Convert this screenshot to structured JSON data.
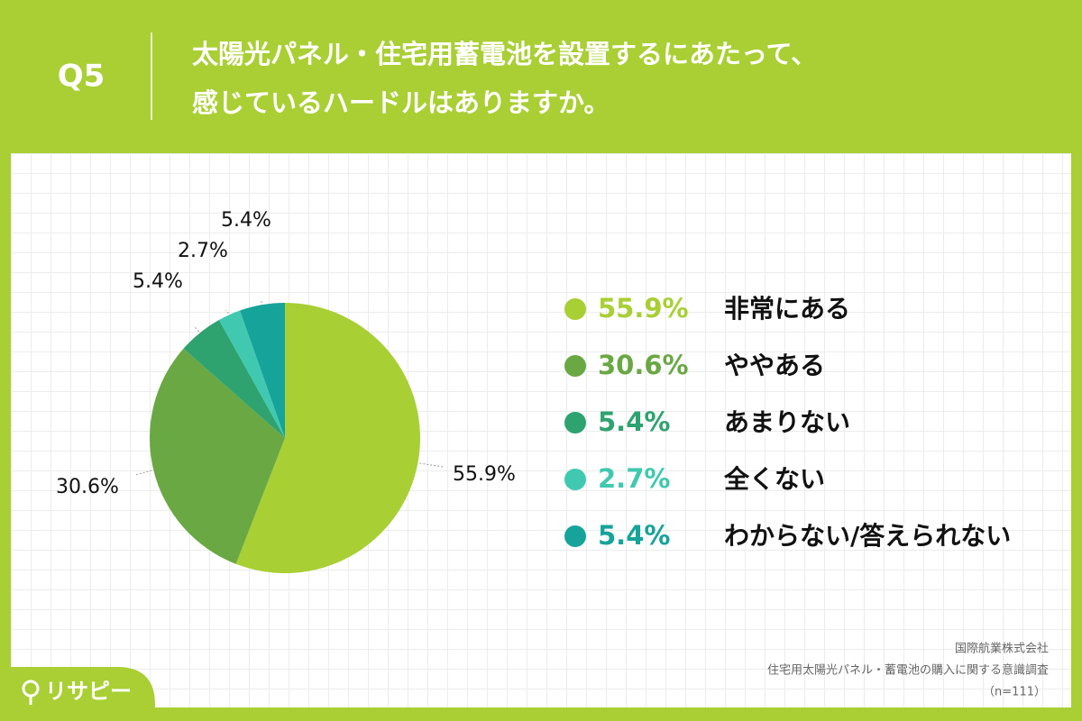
{
  "header": {
    "label": "Q5",
    "title_lines": [
      "太陽光パネル・住宅用蓄電池を設置するにあたって、",
      "感じているハードルはありますか。"
    ]
  },
  "chart_data": {
    "type": "pie",
    "categories": [
      "非常にある",
      "ややある",
      "あまりない",
      "全くない",
      "わからない/答えられない"
    ],
    "values": [
      55.9,
      30.6,
      5.4,
      2.7,
      5.4
    ],
    "value_labels": [
      "55.9%",
      "30.6%",
      "5.4%",
      "2.7%",
      "5.4%"
    ],
    "colors": [
      "#a8cf34",
      "#6aa843",
      "#2ea36f",
      "#40c9b0",
      "#16a39a"
    ]
  },
  "footer": {
    "lines": [
      "国際航業株式会社",
      "住宅用太陽光パネル・蓄電池の購入に関する意識調査",
      "（n=111）"
    ]
  },
  "logo": "リサピー"
}
